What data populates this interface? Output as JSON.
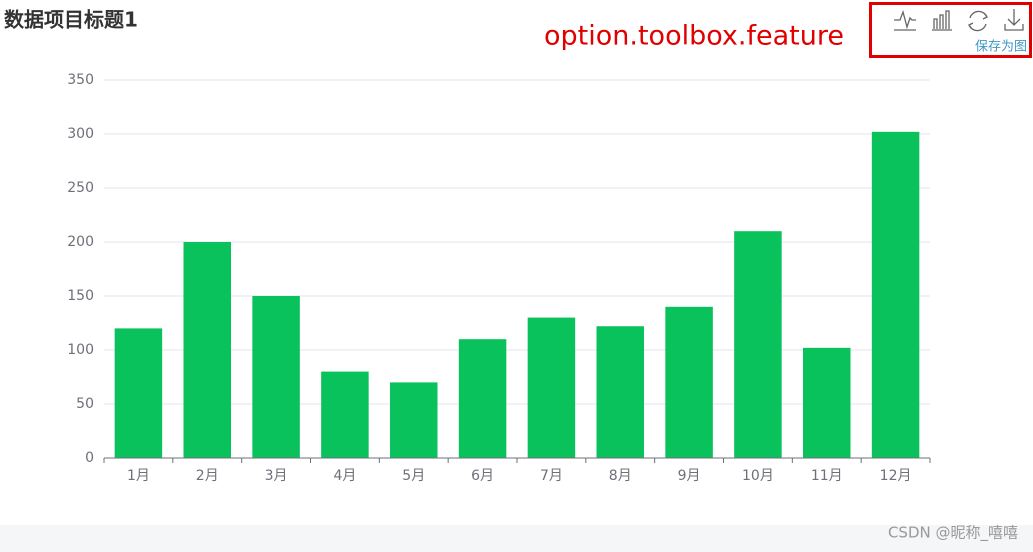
{
  "chart_data": {
    "type": "bar",
    "title": "数据项目标题1",
    "categories": [
      "1月",
      "2月",
      "3月",
      "4月",
      "5月",
      "6月",
      "7月",
      "8月",
      "9月",
      "10月",
      "11月",
      "12月"
    ],
    "values": [
      120,
      200,
      150,
      80,
      70,
      110,
      130,
      122,
      140,
      210,
      102,
      302
    ],
    "color": "#0ac25b",
    "ylim": [
      0,
      350
    ],
    "yticks": [
      0,
      50,
      100,
      150,
      200,
      250,
      300,
      350
    ],
    "grid": true
  },
  "annotation": "option.toolbox.feature",
  "toolbox_label": "保存为图",
  "watermark": "CSDN @昵称_嘻嘻"
}
